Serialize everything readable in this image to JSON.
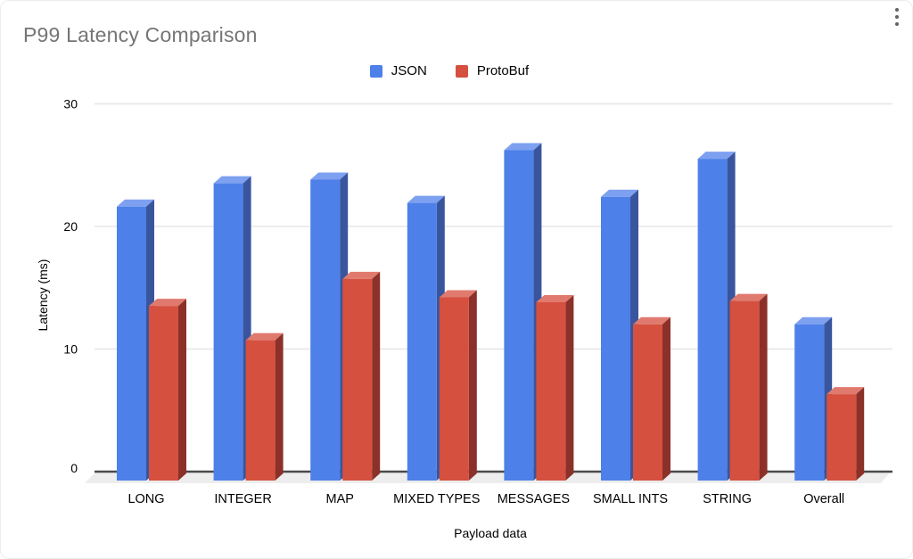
{
  "window": {
    "menu_icon": "kebab-vertical-dots"
  },
  "ui": {
    "title_color": "#757575",
    "grid_color": "#e6e6e6",
    "axis_color": "#4a4a4a",
    "floor_color": "#ededed",
    "menu_dot_color": "#5f6368",
    "label_color": "#000000",
    "background": "#ffffff"
  },
  "chart_data": {
    "type": "bar",
    "title": "P99 Latency Comparison",
    "xlabel": "Payload data",
    "ylabel": "Latency (ms)",
    "categories": [
      "LONG",
      "INTEGER",
      "MAP",
      "MIXED TYPES",
      "MESSAGES",
      "SMALL INTS",
      "STRING",
      "Overall"
    ],
    "series": [
      {
        "name": "JSON",
        "values": [
          22.2,
          24.1,
          24.4,
          22.5,
          26.8,
          23.0,
          26.1,
          12.6
        ],
        "colors": {
          "front": "#4d80e8",
          "side": "#39559e",
          "top": "#7da0f0"
        }
      },
      {
        "name": "ProtoBuf",
        "values": [
          14.1,
          11.3,
          16.3,
          14.8,
          14.4,
          12.6,
          14.5,
          6.9
        ],
        "colors": {
          "front": "#d5503f",
          "side": "#8b3129",
          "top": "#e07a6e"
        }
      }
    ],
    "ylim": [
      0,
      30
    ],
    "yticks": [
      0,
      10,
      20,
      30
    ],
    "grid": true,
    "legend_position": "top-center",
    "effect_3d": true
  }
}
